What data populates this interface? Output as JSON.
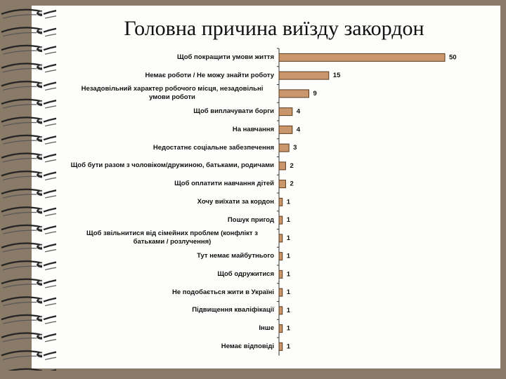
{
  "chart_data": {
    "type": "bar",
    "orientation": "horizontal",
    "title": "Головна причина виїзду закордон",
    "categories": [
      "Щоб покращити умови життя",
      "Немає роботи / Не можу знайти роботу",
      "Незадовільний характер робочого місця, незадовільні умови роботи",
      "Щоб виплачувати борги",
      "На навчання",
      "Недостатнє соціальне забезпечення",
      "Щоб бути разом з чоловіком/дружиною, батьками, родичами",
      "Щоб оплатити навчання дітей",
      "Хочу виїхати за кордон",
      "Пошук пригод",
      "Щоб звільнитися від сімейних проблем (конфлікт з батьками / розлучення)",
      "Тут немає майбутнього",
      "Щоб одружитися",
      "Не подобається жити в Україні",
      "Підвищення кваліфікації",
      "Інше",
      "Немає відповіді"
    ],
    "values": [
      50,
      15,
      9,
      4,
      4,
      3,
      2,
      2,
      1,
      1,
      1,
      1,
      1,
      1,
      1,
      1,
      1
    ],
    "color": "#c9976b"
  }
}
